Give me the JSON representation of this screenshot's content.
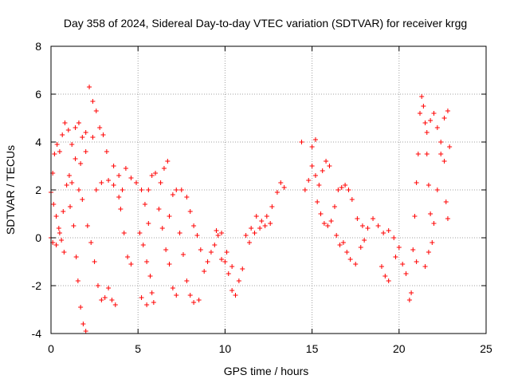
{
  "chart_data": {
    "type": "scatter",
    "title": "Day 358 of 2024, Sidereal Day-to-day VTEC variation (SDTVAR) for receiver krgg",
    "xlabel": "GPS time / hours",
    "ylabel": "SDTVAR / TECUs",
    "xlim": [
      0,
      25
    ],
    "ylim": [
      -4,
      8
    ],
    "xticks": [
      0,
      5,
      10,
      15,
      20,
      25
    ],
    "yticks": [
      -4,
      -2,
      0,
      2,
      4,
      6,
      8
    ],
    "grid": true,
    "marker": "+",
    "color": "#ff0000",
    "series": [
      {
        "name": "SDTVAR",
        "points": [
          [
            0.0,
            0.0
          ],
          [
            0.1,
            2.7
          ],
          [
            0.2,
            3.5
          ],
          [
            0.35,
            3.9
          ],
          [
            0.5,
            3.6
          ],
          [
            0.65,
            4.3
          ],
          [
            0.8,
            4.8
          ],
          [
            1.0,
            4.5
          ],
          [
            1.2,
            3.9
          ],
          [
            1.4,
            4.6
          ],
          [
            1.6,
            4.8
          ],
          [
            1.8,
            4.2
          ],
          [
            2.0,
            4.4
          ],
          [
            2.2,
            6.3
          ],
          [
            2.4,
            5.7
          ],
          [
            2.6,
            5.3
          ],
          [
            2.8,
            4.6
          ],
          [
            3.0,
            4.3
          ],
          [
            3.2,
            3.6
          ],
          [
            0.0,
            1.9
          ],
          [
            0.15,
            1.4
          ],
          [
            0.3,
            0.9
          ],
          [
            0.45,
            0.4
          ],
          [
            0.6,
            -0.1
          ],
          [
            0.75,
            -0.6
          ],
          [
            0.1,
            -0.2
          ],
          [
            0.3,
            -0.3
          ],
          [
            0.5,
            0.2
          ],
          [
            0.7,
            1.1
          ],
          [
            0.9,
            2.2
          ],
          [
            1.05,
            2.6
          ],
          [
            1.2,
            2.3
          ],
          [
            1.1,
            1.3
          ],
          [
            1.3,
            0.5
          ],
          [
            1.45,
            -0.8
          ],
          [
            1.55,
            -1.8
          ],
          [
            1.7,
            -2.9
          ],
          [
            1.85,
            -3.6
          ],
          [
            2.0,
            -3.9
          ],
          [
            1.4,
            3.3
          ],
          [
            1.7,
            3.1
          ],
          [
            2.0,
            3.6
          ],
          [
            2.4,
            4.2
          ],
          [
            1.6,
            2.0
          ],
          [
            1.8,
            1.6
          ],
          [
            2.1,
            0.5
          ],
          [
            2.3,
            -0.2
          ],
          [
            2.5,
            -1.0
          ],
          [
            2.7,
            -2.0
          ],
          [
            2.9,
            -2.6
          ],
          [
            3.1,
            -2.5
          ],
          [
            3.3,
            -2.1
          ],
          [
            3.5,
            -2.6
          ],
          [
            3.7,
            -2.8
          ],
          [
            2.6,
            2.0
          ],
          [
            2.9,
            2.3
          ],
          [
            3.3,
            2.4
          ],
          [
            3.6,
            2.2
          ],
          [
            3.9,
            1.7
          ],
          [
            4.1,
            2.0
          ],
          [
            4.3,
            2.9
          ],
          [
            3.6,
            3.0
          ],
          [
            3.9,
            2.6
          ],
          [
            4.0,
            1.2
          ],
          [
            4.2,
            0.2
          ],
          [
            4.4,
            -0.8
          ],
          [
            4.6,
            -1.1
          ],
          [
            4.6,
            2.5
          ],
          [
            4.9,
            2.3
          ],
          [
            5.2,
            2.0
          ],
          [
            5.4,
            1.4
          ],
          [
            5.6,
            0.6
          ],
          [
            5.1,
            0.2
          ],
          [
            5.3,
            -0.3
          ],
          [
            5.5,
            -1.0
          ],
          [
            5.7,
            -1.6
          ],
          [
            5.8,
            -2.3
          ],
          [
            5.9,
            -2.7
          ],
          [
            5.2,
            -2.5
          ],
          [
            5.5,
            -2.8
          ],
          [
            5.6,
            2.0
          ],
          [
            5.8,
            2.6
          ],
          [
            6.0,
            2.7
          ],
          [
            6.3,
            2.3
          ],
          [
            6.5,
            2.9
          ],
          [
            6.7,
            3.2
          ],
          [
            6.2,
            1.2
          ],
          [
            6.4,
            0.4
          ],
          [
            6.6,
            -0.5
          ],
          [
            6.8,
            -1.1
          ],
          [
            7.0,
            -2.1
          ],
          [
            7.2,
            -2.4
          ],
          [
            6.8,
            0.9
          ],
          [
            7.0,
            1.8
          ],
          [
            7.2,
            2.0
          ],
          [
            7.5,
            2.0
          ],
          [
            7.8,
            1.7
          ],
          [
            8.0,
            1.1
          ],
          [
            8.2,
            0.5
          ],
          [
            8.4,
            0.1
          ],
          [
            8.6,
            -0.5
          ],
          [
            7.4,
            0.2
          ],
          [
            7.6,
            -0.7
          ],
          [
            7.8,
            -1.8
          ],
          [
            8.0,
            -2.4
          ],
          [
            8.2,
            -2.7
          ],
          [
            8.5,
            -2.6
          ],
          [
            8.8,
            -1.4
          ],
          [
            9.0,
            -1.0
          ],
          [
            9.2,
            -0.6
          ],
          [
            9.4,
            -0.3
          ],
          [
            9.6,
            0.1
          ],
          [
            9.8,
            -0.9
          ],
          [
            10.0,
            -1.0
          ],
          [
            10.2,
            -1.5
          ],
          [
            10.4,
            -2.2
          ],
          [
            10.6,
            -2.4
          ],
          [
            10.8,
            -1.8
          ],
          [
            11.0,
            -1.3
          ],
          [
            9.5,
            0.3
          ],
          [
            9.8,
            0.2
          ],
          [
            10.1,
            -0.6
          ],
          [
            10.4,
            -1.2
          ],
          [
            11.2,
            0.1
          ],
          [
            11.5,
            0.4
          ],
          [
            11.8,
            0.9
          ],
          [
            12.1,
            0.7
          ],
          [
            12.4,
            0.9
          ],
          [
            12.7,
            1.3
          ],
          [
            13.0,
            1.9
          ],
          [
            13.2,
            2.3
          ],
          [
            13.4,
            2.1
          ],
          [
            11.4,
            -0.2
          ],
          [
            11.7,
            0.2
          ],
          [
            12.0,
            0.4
          ],
          [
            12.3,
            0.5
          ],
          [
            12.6,
            0.6
          ],
          [
            14.4,
            4.0
          ],
          [
            14.6,
            2.0
          ],
          [
            14.8,
            2.4
          ],
          [
            15.0,
            3.0
          ],
          [
            15.2,
            2.6
          ],
          [
            15.4,
            2.2
          ],
          [
            15.6,
            2.8
          ],
          [
            15.8,
            3.2
          ],
          [
            16.0,
            3.0
          ],
          [
            15.0,
            3.8
          ],
          [
            15.2,
            4.1
          ],
          [
            15.3,
            1.5
          ],
          [
            15.5,
            1.0
          ],
          [
            15.7,
            0.6
          ],
          [
            15.9,
            0.5
          ],
          [
            16.1,
            0.7
          ],
          [
            16.3,
            1.3
          ],
          [
            16.5,
            2.0
          ],
          [
            16.7,
            2.1
          ],
          [
            16.9,
            2.2
          ],
          [
            17.1,
            2.0
          ],
          [
            17.3,
            1.6
          ],
          [
            16.4,
            0.1
          ],
          [
            16.6,
            -0.3
          ],
          [
            16.8,
            -0.2
          ],
          [
            17.0,
            -0.6
          ],
          [
            17.2,
            -0.9
          ],
          [
            17.5,
            -1.1
          ],
          [
            17.8,
            -0.4
          ],
          [
            18.0,
            -0.1
          ],
          [
            17.6,
            0.8
          ],
          [
            17.9,
            0.5
          ],
          [
            18.2,
            0.4
          ],
          [
            18.5,
            0.8
          ],
          [
            18.8,
            0.5
          ],
          [
            19.1,
            0.2
          ],
          [
            19.4,
            0.3
          ],
          [
            19.7,
            0.0
          ],
          [
            19.0,
            -1.2
          ],
          [
            19.2,
            -1.6
          ],
          [
            19.4,
            -1.8
          ],
          [
            19.8,
            -0.8
          ],
          [
            20.0,
            -0.4
          ],
          [
            20.2,
            -1.1
          ],
          [
            20.4,
            -1.5
          ],
          [
            20.6,
            -2.6
          ],
          [
            20.7,
            -2.3
          ],
          [
            20.9,
            0.9
          ],
          [
            21.0,
            2.3
          ],
          [
            21.1,
            3.5
          ],
          [
            21.2,
            5.2
          ],
          [
            21.3,
            5.9
          ],
          [
            21.4,
            5.5
          ],
          [
            21.5,
            4.8
          ],
          [
            21.6,
            3.5
          ],
          [
            21.7,
            2.2
          ],
          [
            21.8,
            1.0
          ],
          [
            21.9,
            -0.2
          ],
          [
            22.0,
            0.6
          ],
          [
            22.2,
            2.0
          ],
          [
            22.4,
            3.5
          ],
          [
            22.6,
            5.0
          ],
          [
            22.8,
            5.3
          ],
          [
            22.9,
            3.8
          ],
          [
            21.6,
            4.4
          ],
          [
            21.8,
            4.9
          ],
          [
            22.0,
            5.2
          ],
          [
            22.2,
            4.6
          ],
          [
            22.4,
            4.0
          ],
          [
            22.6,
            3.2
          ],
          [
            22.8,
            0.8
          ],
          [
            22.7,
            1.5
          ],
          [
            21.5,
            -1.2
          ],
          [
            21.7,
            -0.6
          ],
          [
            21.0,
            -1.0
          ],
          [
            20.8,
            -0.5
          ]
        ]
      }
    ]
  }
}
